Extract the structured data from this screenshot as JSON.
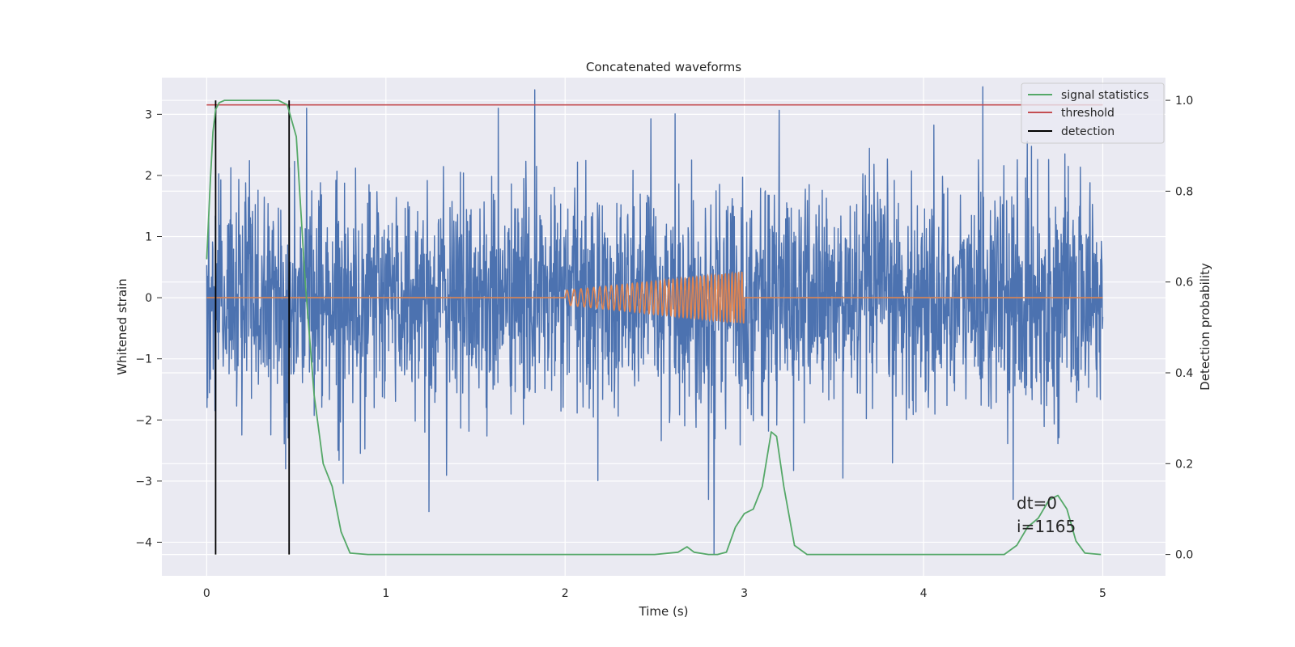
{
  "chart_data": {
    "type": "line",
    "title": "Concatenated waveforms",
    "xlabel": "Time (s)",
    "ylabel": "Whitened strain",
    "y2label": "Detection probability",
    "xlim": [
      -0.25,
      5.35
    ],
    "ylim": [
      -4.55,
      3.6
    ],
    "y2lim": [
      -0.047,
      1.05
    ],
    "x_ticks": [
      0,
      1,
      2,
      3,
      4,
      5
    ],
    "y_ticks": [
      -4,
      -3,
      -2,
      -1,
      0,
      1,
      2,
      3
    ],
    "y2_ticks": [
      0.0,
      0.2,
      0.4,
      0.6,
      0.8,
      1.0
    ],
    "y2_tick_labels": [
      "0.0",
      "0.2",
      "0.4",
      "0.6",
      "0.8",
      "1.0"
    ],
    "grid": true,
    "legend_position": "top-right",
    "legend": [
      "signal statistics",
      "threshold",
      "detection"
    ],
    "colors": {
      "strain": "#4c72b0",
      "template": "#dd8452",
      "signal_statistics": "#55a868",
      "threshold": "#c44e52",
      "detection": "#000000",
      "background": "#eaeaf2",
      "grid": "#ffffff"
    },
    "series": [
      {
        "axis": "left",
        "x": [
          0.0,
          5.0
        ],
        "noise_std": 0.9,
        "spikes": [
          [
            1.83,
            3.4
          ],
          [
            4.33,
            3.45
          ],
          [
            2.83,
            -4.2
          ],
          [
            1.24,
            -3.5
          ],
          [
            0.05,
            -2.65
          ],
          [
            0.44,
            -2.8
          ],
          [
            4.5,
            -3.3
          ],
          [
            2.8,
            -3.3
          ],
          [
            3.55,
            -2.95
          ]
        ]
      },
      {
        "axis": "left",
        "x": [
          2.0,
          3.0
        ],
        "amplitude_start": 0.12,
        "amplitude_end": 0.42,
        "cycles": 40,
        "value_elsewhere": 0
      },
      {
        "name": "signal statistics",
        "axis": "right",
        "x": [
          0.0,
          0.02,
          0.035,
          0.05,
          0.07,
          0.1,
          0.2,
          0.4,
          0.45,
          0.5,
          0.55,
          0.6,
          0.65,
          0.7,
          0.75,
          0.8,
          0.9,
          2.5,
          2.63,
          2.68,
          2.72,
          2.8,
          2.85,
          2.9,
          2.95,
          3.0,
          3.05,
          3.1,
          3.15,
          3.18,
          3.22,
          3.28,
          3.35,
          4.45,
          4.52,
          4.58,
          4.64,
          4.7,
          4.75,
          4.8,
          4.85,
          4.9,
          4.99
        ],
        "y": [
          0.65,
          0.82,
          0.93,
          0.98,
          0.995,
          1.0,
          1.0,
          1.0,
          0.99,
          0.92,
          0.6,
          0.35,
          0.2,
          0.15,
          0.05,
          0.003,
          0.0,
          0.0,
          0.005,
          0.017,
          0.005,
          0.0,
          0.0,
          0.005,
          0.06,
          0.09,
          0.1,
          0.15,
          0.27,
          0.26,
          0.15,
          0.02,
          0.0,
          0.0,
          0.02,
          0.06,
          0.08,
          0.12,
          0.13,
          0.1,
          0.03,
          0.003,
          0.0
        ]
      },
      {
        "name": "threshold",
        "axis": "right",
        "x": [
          0.0,
          5.0
        ],
        "y": [
          0.99,
          0.99
        ]
      },
      {
        "name": "detection",
        "axis": "right",
        "type": "vlines",
        "x": [
          0.05,
          0.46
        ],
        "y_range": [
          0.0,
          1.0
        ]
      }
    ],
    "annotations": [
      {
        "text": "dt=0",
        "x": 4.5,
        "y": 0.11,
        "axis": "right"
      },
      {
        "text": "i=1165",
        "x": 4.5,
        "y": 0.06,
        "axis": "right"
      }
    ]
  }
}
